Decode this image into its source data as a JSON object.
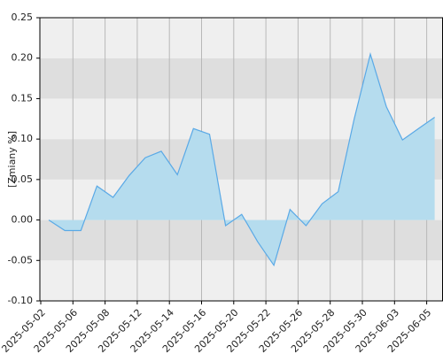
{
  "chart_data": {
    "type": "area",
    "y_label": "[Zmiany %]",
    "categories": [
      "2025-05-02",
      null,
      "2025-05-06",
      null,
      "2025-05-08",
      null,
      "2025-05-12",
      null,
      "2025-05-14",
      null,
      "2025-05-16",
      null,
      "2025-05-20",
      null,
      "2025-05-22",
      null,
      "2025-05-26",
      null,
      "2025-05-28",
      null,
      "2025-05-30",
      null,
      "2025-06-03",
      null,
      "2025-06-05"
    ],
    "values": [
      0.0,
      -0.013,
      -0.013,
      0.042,
      0.028,
      0.055,
      0.077,
      0.085,
      0.056,
      0.113,
      0.106,
      -0.007,
      0.007,
      -0.027,
      -0.056,
      0.013,
      -0.007,
      0.02,
      0.035,
      0.125,
      0.205,
      0.14,
      0.099,
      0.113,
      0.127
    ],
    "color": "#5aa9e6",
    "fill": "#b5dcee",
    "ylim": [
      -0.1,
      0.25
    ],
    "yticks": [
      {
        "value": -0.1,
        "label": "-0.10"
      },
      {
        "value": -0.05,
        "label": "-0.05"
      },
      {
        "value": 0,
        "label": "0.00"
      },
      {
        "value": 0.05,
        "label": "0.05"
      },
      {
        "value": 0.1,
        "label": "0.10"
      },
      {
        "value": 0.15,
        "label": "0.15"
      },
      {
        "value": 0.2,
        "label": "0.20"
      },
      {
        "value": 0.25,
        "label": "0.25"
      }
    ],
    "grid": true
  }
}
